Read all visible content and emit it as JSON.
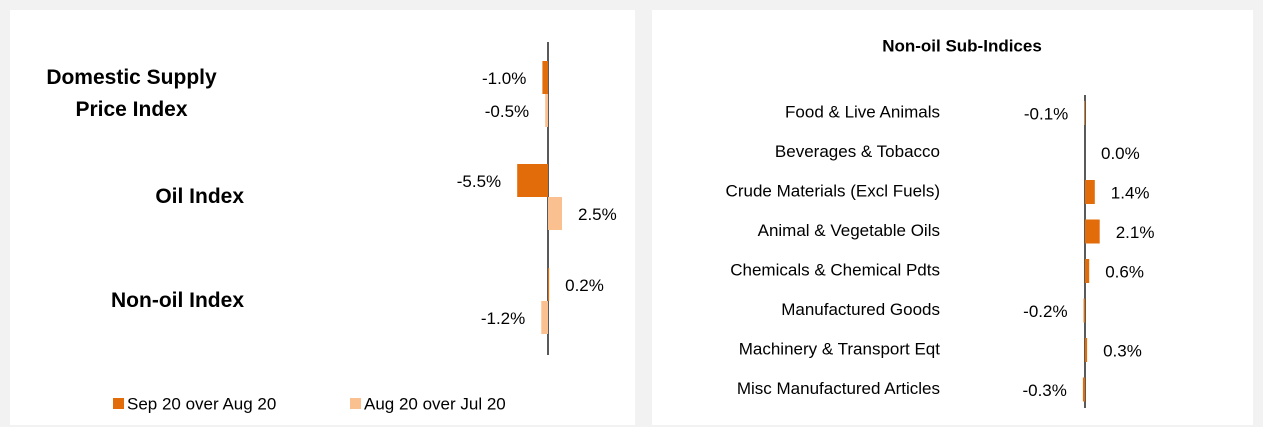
{
  "chart_data": [
    {
      "type": "hbar",
      "categories": [
        "Domestic Supply Price Index",
        "Oil Index",
        "Non-oil Index"
      ],
      "series": [
        {
          "name": "Sep 20 over Aug 20",
          "color": "#e36c0a",
          "values": [
            -1.0,
            -5.5,
            0.2
          ],
          "value_labels": [
            "-1.0%",
            "-5.5%",
            "0.2%"
          ]
        },
        {
          "name": "Aug 20 over Jul 20",
          "color": "#fac090",
          "values": [
            -0.5,
            2.5,
            -1.2
          ],
          "value_labels": [
            "-0.5%",
            "2.5%",
            "-1.2%"
          ]
        }
      ],
      "legend": "bottom"
    },
    {
      "type": "hbar",
      "title": "Non-oil Sub-Indices",
      "categories": [
        "Food & Live Animals",
        "Beverages & Tobacco",
        "Crude Materials (Excl Fuels)",
        "Animal & Vegetable Oils",
        "Chemicals & Chemical Pdts",
        "Manufactured Goods",
        "Machinery & Transport Eqt",
        "Misc Manufactured Articles"
      ],
      "series": [
        {
          "color": "#e36c0a",
          "values": [
            -0.1,
            0.0,
            1.4,
            2.1,
            0.6,
            -0.2,
            0.3,
            -0.3
          ],
          "value_labels": [
            "-0.1%",
            "0.0%",
            "1.4%",
            "2.1%",
            "0.6%",
            "-0.2%",
            "0.3%",
            "-0.3%"
          ]
        }
      ]
    }
  ]
}
